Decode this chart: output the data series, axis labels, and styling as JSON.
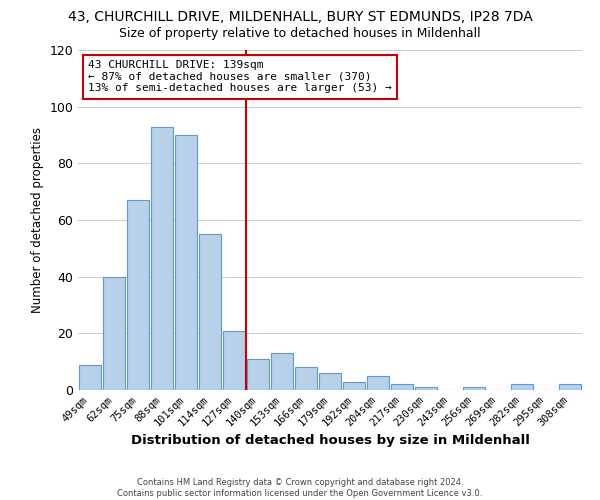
{
  "title_line1": "43, CHURCHILL DRIVE, MILDENHALL, BURY ST EDMUNDS, IP28 7DA",
  "title_line2": "Size of property relative to detached houses in Mildenhall",
  "xlabel": "Distribution of detached houses by size in Mildenhall",
  "ylabel": "Number of detached properties",
  "bar_labels": [
    "49sqm",
    "62sqm",
    "75sqm",
    "88sqm",
    "101sqm",
    "114sqm",
    "127sqm",
    "140sqm",
    "153sqm",
    "166sqm",
    "179sqm",
    "192sqm",
    "204sqm",
    "217sqm",
    "230sqm",
    "243sqm",
    "256sqm",
    "269sqm",
    "282sqm",
    "295sqm",
    "308sqm"
  ],
  "bar_values": [
    9,
    40,
    67,
    93,
    90,
    55,
    21,
    11,
    13,
    8,
    6,
    3,
    5,
    2,
    1,
    0,
    1,
    0,
    2,
    0,
    2
  ],
  "bar_color": "#b8d0e8",
  "bar_edge_color": "#5b9bd5",
  "vline_color": "#cc0000",
  "annotation_title": "43 CHURCHILL DRIVE: 139sqm",
  "annotation_line1": "← 87% of detached houses are smaller (370)",
  "annotation_line2": "13% of semi-detached houses are larger (53) →",
  "annotation_box_color": "#ffffff",
  "annotation_box_edge": "#cc0000",
  "ylim": [
    0,
    120
  ],
  "yticks": [
    0,
    20,
    40,
    60,
    80,
    100,
    120
  ],
  "footer_line1": "Contains HM Land Registry data © Crown copyright and database right 2024.",
  "footer_line2": "Contains public sector information licensed under the Open Government Licence v3.0.",
  "background_color": "#ffffff",
  "grid_color": "#cccccc"
}
